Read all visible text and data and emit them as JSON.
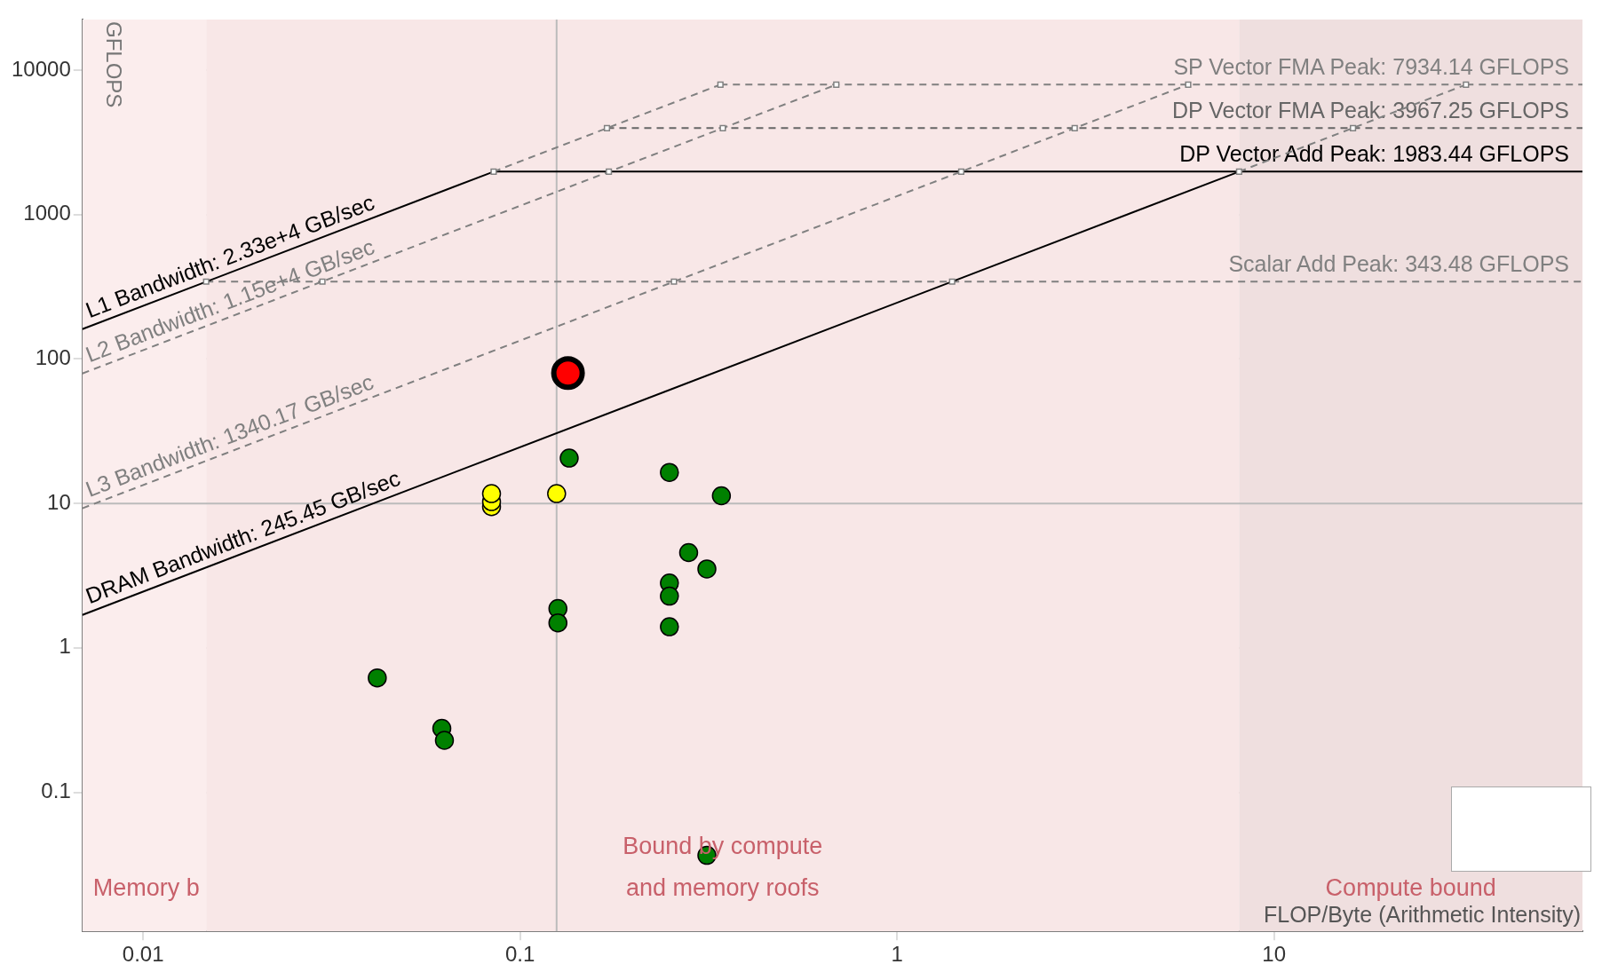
{
  "chart_data": {
    "type": "scatter",
    "xlabel": "FLOP/Byte (Arithmetic Intensity)",
    "ylabel": "GFLOPS",
    "log": "xy",
    "grid": true,
    "legend": false,
    "xlim": [
      0.0069,
      65.8
    ],
    "ylim": [
      0.0109,
      22400
    ],
    "xticks": [
      0.01,
      0.1,
      1,
      10
    ],
    "yticks": [
      0.1,
      1,
      10,
      100,
      1000,
      10000
    ],
    "bands": [
      {
        "axis": "x",
        "from": 0.0069,
        "to": 0.0147,
        "label": "Memory b",
        "color": "#fbeded"
      },
      {
        "axis": "x",
        "from": 0.0147,
        "to": 8.08,
        "label": "Bound by compute\nand memory roofs",
        "color": "#f8e7e7"
      },
      {
        "axis": "x",
        "from": 8.08,
        "to": 65.8,
        "label": "Compute bound",
        "color": "#efdfdf"
      }
    ],
    "ref_lines": [
      {
        "axis": "x",
        "value": 0.125,
        "color": "#bbbbbb"
      },
      {
        "axis": "y",
        "value": 10,
        "color": "#bbbbbb"
      }
    ],
    "series": [
      {
        "type": "line",
        "name": "SP Vector FMA Peak: 7934.14 GFLOPS",
        "color": "#808080",
        "line_style": "dashed",
        "marker": "none",
        "x": [
          0.34,
          65.8
        ],
        "values": [
          7934.14,
          7934.14
        ]
      },
      {
        "type": "line",
        "name": "DP Vector FMA Peak: 3967.25 GFLOPS",
        "color": "#666666",
        "line_style": "dashed",
        "marker": "none",
        "x": [
          0.17,
          65.8
        ],
        "values": [
          3967.25,
          3967.25
        ]
      },
      {
        "type": "line",
        "name": "DP Vector Add Peak: 1983.44 GFLOPS",
        "color": "#000000",
        "line_style": "solid",
        "marker": "none",
        "x": [
          0.0851,
          65.8
        ],
        "values": [
          1983.44,
          1983.44
        ]
      },
      {
        "type": "line",
        "name": "Scalar Add Peak: 343.48 GFLOPS",
        "color": "#808080",
        "line_style": "dashed",
        "marker": "none",
        "x": [
          0.0147,
          65.8
        ],
        "values": [
          343.48,
          343.48
        ]
      },
      {
        "type": "line",
        "name": "L1 Bandwidth: 2.33e+4 GB/sec",
        "color": "#000000",
        "line_style": "solid",
        "marker": "none",
        "x": [
          0.0069,
          0.0851
        ],
        "values": [
          161,
          1983.44
        ]
      },
      {
        "type": "line",
        "color": "#808080",
        "line_style": "dashed",
        "marker": "none",
        "x": [
          0.0851,
          0.34
        ],
        "values": [
          1983.44,
          7934.14
        ]
      },
      {
        "type": "line",
        "name": "L2 Bandwidth: 1.15e+4 GB/sec",
        "color": "#808080",
        "line_style": "dashed",
        "marker": "none",
        "x": [
          0.0069,
          0.69
        ],
        "values": [
          79.4,
          7934.14
        ]
      },
      {
        "type": "line",
        "name": "L3 Bandwidth: 1340.17 GB/sec",
        "color": "#808080",
        "line_style": "dashed",
        "marker": "none",
        "x": [
          0.0069,
          5.92
        ],
        "values": [
          9.25,
          7934.14
        ]
      },
      {
        "type": "line",
        "name": "DRAM Bandwidth: 245.45 GB/sec",
        "color": "#000000",
        "line_style": "solid",
        "marker": "none",
        "x": [
          0.0069,
          8.08
        ],
        "values": [
          1.69,
          1983.44
        ]
      },
      {
        "type": "line",
        "color": "#808080",
        "line_style": "dashed",
        "marker": "none",
        "x": [
          8.08,
          32.3
        ],
        "values": [
          1983.44,
          7934.14
        ]
      },
      {
        "type": "scatter",
        "color": "#808080",
        "marker": "square",
        "x": [
          0.0147,
          0.0851,
          0.17,
          0.34,
          0.0299,
          0.172,
          0.345,
          0.69,
          0.256,
          1.48,
          2.96,
          5.92,
          1.4,
          8.08,
          16.2,
          32.3
        ],
        "values": [
          343.48,
          1983.44,
          3967.25,
          7934.14,
          343.48,
          1983.44,
          3967.25,
          7934.14,
          343.48,
          1983.44,
          3967.25,
          7934.14,
          343.48,
          1983.44,
          3967.25,
          7934.14
        ]
      },
      {
        "type": "scatter",
        "color": "#008000",
        "marker": "circle",
        "x": [
          0.135,
          0.249,
          0.342,
          0.28,
          0.313,
          0.249,
          0.249,
          0.126,
          0.126,
          0.249,
          0.0418,
          0.062,
          0.063,
          0.313
        ],
        "values": [
          20.6,
          16.4,
          11.3,
          4.57,
          3.52,
          2.81,
          2.28,
          1.87,
          1.49,
          1.4,
          0.62,
          0.277,
          0.229,
          0.0366
        ]
      },
      {
        "type": "scatter",
        "color": "#ffff00",
        "marker": "circle",
        "x": [
          0.084,
          0.084,
          0.084,
          0.125
        ],
        "values": [
          9.5,
          10.3,
          11.7,
          11.7
        ]
      },
      {
        "type": "scatter",
        "color": "#ff0000",
        "marker": "circle",
        "x": [
          0.134
        ],
        "values": [
          80
        ]
      }
    ]
  }
}
